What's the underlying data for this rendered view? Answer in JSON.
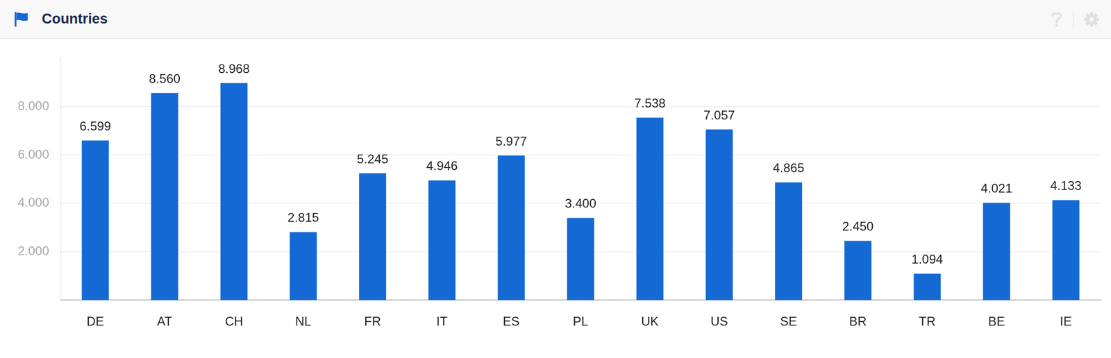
{
  "chart_data": {
    "type": "bar",
    "title": "Countries",
    "categories": [
      "DE",
      "AT",
      "CH",
      "NL",
      "FR",
      "IT",
      "ES",
      "PL",
      "UK",
      "US",
      "SE",
      "BR",
      "TR",
      "BE",
      "IE"
    ],
    "values": [
      6599,
      8560,
      8968,
      2815,
      5245,
      4946,
      5977,
      3400,
      7538,
      7057,
      4865,
      2450,
      1094,
      4021,
      4133
    ],
    "value_labels": [
      "6.599",
      "8.560",
      "8.968",
      "2.815",
      "5.245",
      "4.946",
      "5.977",
      "3.400",
      "7.538",
      "7.057",
      "4.865",
      "2.450",
      "1.094",
      "4.021",
      "4.133"
    ],
    "color": "#1469d4",
    "ylim": [
      0,
      10000
    ],
    "yticks": [
      {
        "value": 2000,
        "label": "2.000"
      },
      {
        "value": 4000,
        "label": "4.000"
      },
      {
        "value": 6000,
        "label": "6.000"
      },
      {
        "value": 8000,
        "label": "8.000"
      }
    ],
    "grid": true,
    "data_labels": true
  }
}
